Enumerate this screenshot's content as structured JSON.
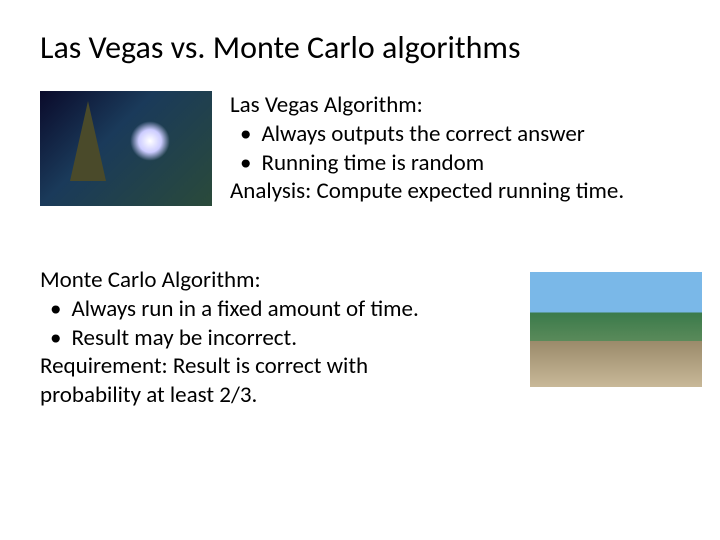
{
  "title": "Las Vegas vs. Monte Carlo algorithms",
  "section1": {
    "heading": "Las Vegas Algorithm:",
    "bullet1": "Always outputs the correct answer",
    "bullet2": "Running time is random",
    "analysis": "Analysis: Compute expected running time."
  },
  "section2": {
    "heading": "Monte Carlo Algorithm:",
    "bullet1": "Always run in a fixed amount of time.",
    "bullet2": "Result may be incorrect.",
    "req1": "Requirement: Result is correct with",
    "req2": "probability at least 2/3."
  },
  "style": {
    "title_fontsize": 32,
    "body_fontsize": 23,
    "font_family": "Calibri",
    "text_color": "#000000",
    "background_color": "#ffffff",
    "img1_width": 172,
    "img1_height": 115,
    "img2_width": 172,
    "img2_height": 115
  }
}
